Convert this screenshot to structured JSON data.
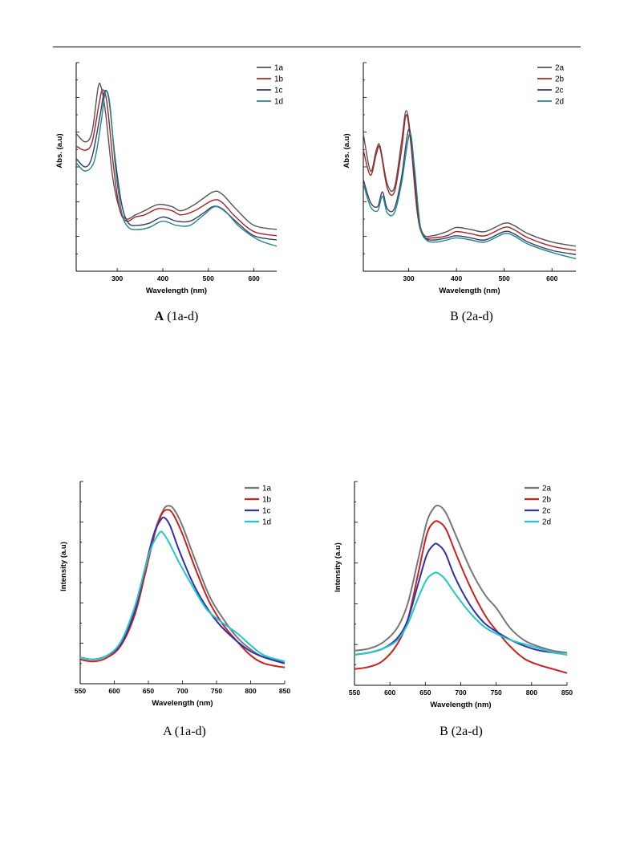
{
  "colors": {
    "a": "#555555",
    "b": "#b02020",
    "c": "#3a3a6a",
    "d": "#20888a",
    "a_em": "#777777",
    "b_em": "#d02020",
    "c_em": "#3030b0",
    "d_em": "#20c8c8"
  },
  "chart_data": [
    {
      "id": "absA",
      "type": "line",
      "caption_bold": "A",
      "caption_rest": " (1a-d)",
      "xlabel": "Wavelength (nm)",
      "ylabel": "Abs. (a.u)",
      "xlim": [
        210,
        650
      ],
      "ylim": [
        0,
        1
      ],
      "xticks": [
        300,
        400,
        500,
        600
      ],
      "legend": "top-right",
      "series": [
        {
          "name": "1a",
          "color_key": "a",
          "x": [
            210,
            230,
            245,
            258,
            265,
            275,
            290,
            305,
            320,
            340,
            360,
            390,
            420,
            440,
            470,
            510,
            530,
            560,
            600,
            650
          ],
          "y": [
            0.66,
            0.62,
            0.67,
            0.88,
            0.88,
            0.75,
            0.45,
            0.3,
            0.25,
            0.27,
            0.29,
            0.32,
            0.31,
            0.29,
            0.32,
            0.38,
            0.37,
            0.3,
            0.22,
            0.2
          ]
        },
        {
          "name": "1b",
          "color_key": "b",
          "x": [
            210,
            230,
            245,
            260,
            268,
            278,
            292,
            305,
            320,
            340,
            360,
            390,
            420,
            440,
            470,
            510,
            530,
            560,
            600,
            650
          ],
          "y": [
            0.6,
            0.58,
            0.62,
            0.8,
            0.87,
            0.8,
            0.5,
            0.3,
            0.24,
            0.26,
            0.27,
            0.3,
            0.29,
            0.27,
            0.29,
            0.34,
            0.33,
            0.26,
            0.19,
            0.17
          ]
        },
        {
          "name": "1c",
          "color_key": "c",
          "x": [
            210,
            230,
            245,
            262,
            272,
            282,
            295,
            310,
            325,
            345,
            370,
            400,
            430,
            460,
            490,
            510,
            530,
            560,
            600,
            650
          ],
          "y": [
            0.54,
            0.5,
            0.55,
            0.74,
            0.86,
            0.82,
            0.55,
            0.32,
            0.23,
            0.22,
            0.23,
            0.26,
            0.24,
            0.24,
            0.28,
            0.31,
            0.3,
            0.24,
            0.17,
            0.15
          ]
        },
        {
          "name": "1d",
          "color_key": "d",
          "x": [
            210,
            230,
            250,
            265,
            274,
            284,
            296,
            310,
            325,
            345,
            370,
            400,
            430,
            460,
            490,
            515,
            540,
            570,
            610,
            650
          ],
          "y": [
            0.52,
            0.48,
            0.53,
            0.72,
            0.86,
            0.8,
            0.5,
            0.28,
            0.21,
            0.2,
            0.21,
            0.24,
            0.22,
            0.22,
            0.27,
            0.31,
            0.28,
            0.21,
            0.15,
            0.12
          ]
        }
      ]
    },
    {
      "id": "absB",
      "type": "line",
      "caption_bold": "",
      "caption_rest": "B (2a-d)",
      "xlabel": "Wavelength (nm)",
      "ylabel": "Abs. (a.u)",
      "xlim": [
        205,
        650
      ],
      "ylim": [
        0,
        1
      ],
      "xticks": [
        300,
        400,
        500,
        600
      ],
      "legend": "top-right",
      "series": [
        {
          "name": "2a",
          "color_key": "a",
          "x": [
            205,
            220,
            232,
            240,
            255,
            270,
            285,
            295,
            305,
            318,
            330,
            350,
            380,
            400,
            430,
            460,
            500,
            520,
            550,
            600,
            650
          ],
          "y": [
            0.66,
            0.48,
            0.58,
            0.6,
            0.42,
            0.4,
            0.62,
            0.77,
            0.62,
            0.3,
            0.18,
            0.17,
            0.19,
            0.21,
            0.2,
            0.19,
            0.23,
            0.22,
            0.18,
            0.14,
            0.12
          ]
        },
        {
          "name": "2b",
          "color_key": "b",
          "x": [
            205,
            220,
            232,
            240,
            255,
            270,
            285,
            295,
            305,
            318,
            330,
            350,
            380,
            400,
            430,
            460,
            500,
            520,
            550,
            600,
            650
          ],
          "y": [
            0.58,
            0.46,
            0.56,
            0.59,
            0.4,
            0.38,
            0.58,
            0.75,
            0.6,
            0.28,
            0.17,
            0.16,
            0.17,
            0.19,
            0.18,
            0.17,
            0.21,
            0.2,
            0.16,
            0.12,
            0.1
          ]
        },
        {
          "name": "2c",
          "color_key": "c",
          "x": [
            205,
            220,
            235,
            245,
            255,
            270,
            285,
            300,
            310,
            322,
            335,
            355,
            380,
            400,
            430,
            460,
            500,
            520,
            550,
            600,
            650
          ],
          "y": [
            0.44,
            0.33,
            0.31,
            0.38,
            0.3,
            0.3,
            0.45,
            0.68,
            0.52,
            0.24,
            0.16,
            0.15,
            0.16,
            0.17,
            0.16,
            0.15,
            0.19,
            0.18,
            0.14,
            0.1,
            0.08
          ]
        },
        {
          "name": "2d",
          "color_key": "d",
          "x": [
            205,
            220,
            235,
            245,
            255,
            270,
            285,
            302,
            312,
            324,
            337,
            357,
            380,
            400,
            430,
            460,
            500,
            520,
            550,
            600,
            650
          ],
          "y": [
            0.42,
            0.31,
            0.29,
            0.36,
            0.28,
            0.28,
            0.42,
            0.66,
            0.5,
            0.22,
            0.15,
            0.14,
            0.15,
            0.16,
            0.15,
            0.14,
            0.18,
            0.17,
            0.13,
            0.09,
            0.06
          ]
        }
      ]
    },
    {
      "id": "emA",
      "type": "line",
      "caption_bold": "",
      "caption_rest": "A (1a-d)",
      "xlabel": "Wavelength (nm)",
      "ylabel": "Intensity (a.u)",
      "xlim": [
        550,
        850
      ],
      "ylim": [
        0,
        1
      ],
      "xticks": [
        550,
        600,
        650,
        700,
        750,
        800,
        850
      ],
      "legend": "top-right",
      "series": [
        {
          "name": "1a",
          "color_key": "a_em",
          "x": [
            550,
            570,
            590,
            610,
            630,
            645,
            660,
            672,
            680,
            688,
            700,
            720,
            740,
            760,
            780,
            800,
            820,
            850
          ],
          "y": [
            0.13,
            0.12,
            0.14,
            0.2,
            0.35,
            0.55,
            0.76,
            0.86,
            0.88,
            0.86,
            0.78,
            0.6,
            0.43,
            0.32,
            0.23,
            0.17,
            0.13,
            0.11
          ]
        },
        {
          "name": "1b",
          "color_key": "b_em",
          "x": [
            550,
            570,
            590,
            610,
            630,
            645,
            660,
            670,
            678,
            686,
            700,
            720,
            740,
            760,
            780,
            800,
            820,
            850
          ],
          "y": [
            0.12,
            0.11,
            0.13,
            0.19,
            0.34,
            0.54,
            0.75,
            0.84,
            0.86,
            0.84,
            0.74,
            0.56,
            0.4,
            0.29,
            0.21,
            0.14,
            0.1,
            0.08
          ]
        },
        {
          "name": "1c",
          "color_key": "c_em",
          "x": [
            550,
            570,
            590,
            610,
            630,
            645,
            658,
            668,
            674,
            682,
            695,
            715,
            735,
            755,
            780,
            800,
            820,
            850
          ],
          "y": [
            0.13,
            0.12,
            0.14,
            0.2,
            0.36,
            0.57,
            0.74,
            0.81,
            0.82,
            0.78,
            0.66,
            0.5,
            0.38,
            0.29,
            0.21,
            0.16,
            0.13,
            0.1
          ]
        },
        {
          "name": "1d",
          "color_key": "d_em",
          "x": [
            550,
            570,
            590,
            610,
            630,
            645,
            655,
            665,
            670,
            680,
            695,
            715,
            735,
            755,
            780,
            800,
            820,
            850
          ],
          "y": [
            0.13,
            0.12,
            0.14,
            0.21,
            0.38,
            0.57,
            0.68,
            0.74,
            0.75,
            0.7,
            0.6,
            0.48,
            0.37,
            0.31,
            0.25,
            0.19,
            0.14,
            0.11
          ]
        }
      ]
    },
    {
      "id": "emB",
      "type": "line",
      "caption_bold": "",
      "caption_rest": "B (2a-d)",
      "xlabel": "Wavelength (nm)",
      "ylabel": "Intensity (a.u)",
      "xlim": [
        550,
        850
      ],
      "ylim": [
        0,
        1
      ],
      "xticks": [
        550,
        600,
        650,
        700,
        750,
        800,
        850
      ],
      "legend": "top-right",
      "series": [
        {
          "name": "2a",
          "color_key": "a_em",
          "x": [
            550,
            570,
            590,
            610,
            625,
            640,
            652,
            662,
            670,
            680,
            695,
            715,
            735,
            750,
            770,
            790,
            810,
            830,
            850
          ],
          "y": [
            0.17,
            0.18,
            0.21,
            0.28,
            0.4,
            0.62,
            0.8,
            0.87,
            0.88,
            0.84,
            0.72,
            0.56,
            0.44,
            0.38,
            0.28,
            0.22,
            0.19,
            0.17,
            0.16
          ]
        },
        {
          "name": "2b",
          "color_key": "b_em",
          "x": [
            550,
            570,
            590,
            610,
            625,
            640,
            652,
            662,
            670,
            680,
            695,
            715,
            735,
            750,
            770,
            790,
            810,
            830,
            850
          ],
          "y": [
            0.08,
            0.09,
            0.12,
            0.2,
            0.32,
            0.55,
            0.74,
            0.8,
            0.8,
            0.76,
            0.63,
            0.47,
            0.34,
            0.27,
            0.19,
            0.13,
            0.1,
            0.08,
            0.06
          ]
        },
        {
          "name": "2c",
          "color_key": "c_em",
          "x": [
            550,
            570,
            590,
            610,
            625,
            640,
            652,
            662,
            668,
            678,
            692,
            712,
            732,
            752,
            772,
            792,
            812,
            832,
            850
          ],
          "y": [
            0.15,
            0.16,
            0.18,
            0.23,
            0.32,
            0.5,
            0.64,
            0.69,
            0.69,
            0.65,
            0.53,
            0.4,
            0.31,
            0.26,
            0.22,
            0.19,
            0.17,
            0.16,
            0.15
          ]
        },
        {
          "name": "2d",
          "color_key": "d_em",
          "x": [
            550,
            570,
            590,
            610,
            625,
            640,
            652,
            662,
            668,
            678,
            692,
            712,
            732,
            752,
            772,
            792,
            812,
            832,
            850
          ],
          "y": [
            0.15,
            0.16,
            0.18,
            0.22,
            0.3,
            0.43,
            0.52,
            0.55,
            0.55,
            0.52,
            0.45,
            0.36,
            0.29,
            0.25,
            0.22,
            0.2,
            0.18,
            0.16,
            0.15
          ]
        }
      ]
    }
  ]
}
